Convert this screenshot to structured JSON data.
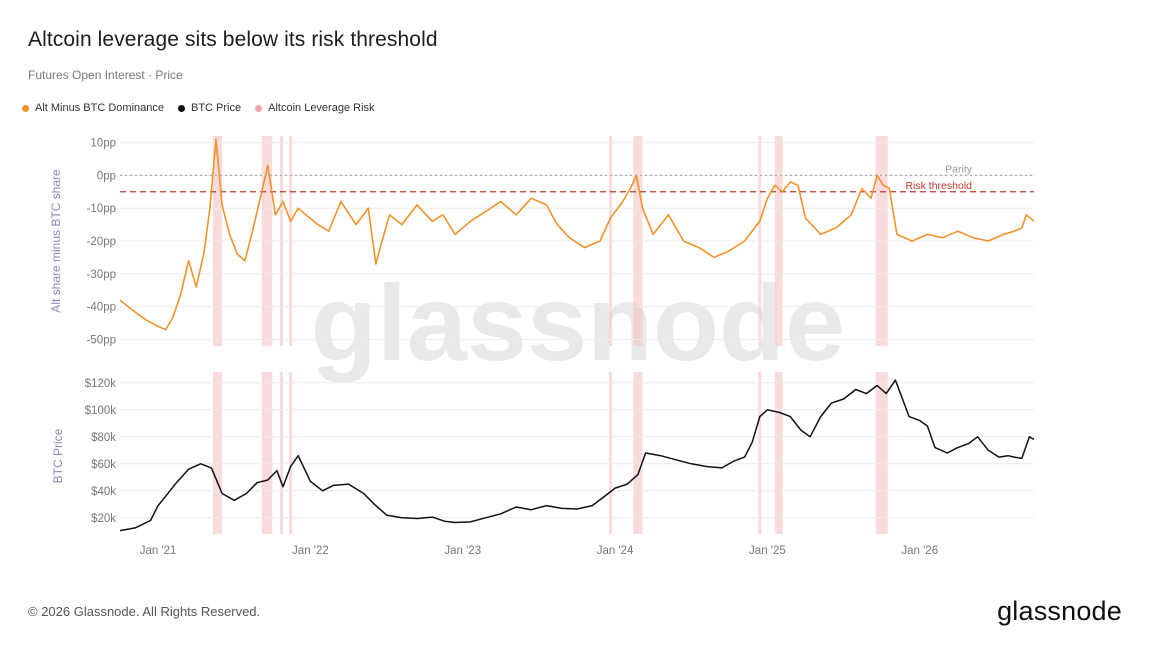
{
  "title": "Altcoin leverage sits below its risk threshold",
  "subtitle": "Futures Open Interest · Price",
  "legend": [
    {
      "label": "Alt Minus BTC Dominance",
      "color": "#f0932b"
    },
    {
      "label": "BTC Price",
      "color": "#111111"
    },
    {
      "label": "Altcoin Leverage Risk",
      "color": "#f2a9a9"
    }
  ],
  "watermark": "glassnode",
  "footer": "© 2026 Glassnode. All Rights Reserved.",
  "brand": "glassnode",
  "chart_data": [
    {
      "type": "line",
      "panel": "top",
      "ylabel": "Alt share minus BTC share",
      "ylim": [
        -52,
        12
      ],
      "yticks": [
        10,
        0,
        -10,
        -20,
        -30,
        -40,
        -50
      ],
      "ytick_labels": [
        "10pp",
        "0pp",
        "-10pp",
        "-20pp",
        "-30pp",
        "-40pp",
        "-50pp"
      ],
      "xlim": [
        2020.75,
        2026.75
      ],
      "reference_lines": [
        {
          "label": "Parity",
          "value": 0,
          "color": "#aaaaaa",
          "style": "dotted"
        },
        {
          "label": "Risk threshold",
          "value": -5,
          "color": "#c0392b",
          "style": "dashed"
        }
      ],
      "series": [
        {
          "name": "Alt Minus BTC Dominance",
          "color": "#f0932b",
          "x": [
            2020.75,
            2020.83,
            2020.92,
            2021.0,
            2021.05,
            2021.1,
            2021.15,
            2021.2,
            2021.25,
            2021.3,
            2021.34,
            2021.38,
            2021.42,
            2021.47,
            2021.52,
            2021.57,
            2021.62,
            2021.68,
            2021.72,
            2021.77,
            2021.82,
            2021.87,
            2021.92,
            2021.97,
            2022.05,
            2022.12,
            2022.2,
            2022.3,
            2022.38,
            2022.43,
            2022.47,
            2022.52,
            2022.6,
            2022.7,
            2022.8,
            2022.87,
            2022.95,
            2023.05,
            2023.15,
            2023.25,
            2023.35,
            2023.45,
            2023.55,
            2023.62,
            2023.7,
            2023.8,
            2023.9,
            2023.97,
            2024.05,
            2024.1,
            2024.14,
            2024.18,
            2024.25,
            2024.35,
            2024.45,
            2024.55,
            2024.65,
            2024.75,
            2024.85,
            2024.95,
            2025.0,
            2025.05,
            2025.1,
            2025.15,
            2025.2,
            2025.25,
            2025.35,
            2025.45,
            2025.55,
            2025.62,
            2025.68,
            2025.72,
            2025.76,
            2025.8,
            2025.85,
            2025.95,
            2026.05,
            2026.15,
            2026.25,
            2026.35,
            2026.45,
            2026.55,
            2026.62,
            2026.67,
            2026.7,
            2026.75
          ],
          "values": [
            -38,
            -41,
            -44,
            -46,
            -47,
            -43,
            -36,
            -26,
            -34,
            -24,
            -10,
            11,
            -9,
            -18,
            -24,
            -26,
            -17,
            -5,
            3,
            -12,
            -8,
            -14,
            -10,
            -12,
            -15,
            -17,
            -8,
            -15,
            -10,
            -27,
            -20,
            -12,
            -15,
            -9,
            -14,
            -12,
            -18,
            -14,
            -11,
            -8,
            -12,
            -7,
            -9,
            -15,
            -19,
            -22,
            -20,
            -13,
            -8,
            -4,
            0,
            -10,
            -18,
            -12,
            -20,
            -22,
            -25,
            -23,
            -20,
            -14,
            -7,
            -3,
            -5,
            -2,
            -3,
            -13,
            -18,
            -16,
            -12,
            -4,
            -7,
            0,
            -3,
            -4,
            -18,
            -20,
            -18,
            -19,
            -17,
            -19,
            -20,
            -18,
            -17,
            -16,
            -12,
            -14
          ]
        }
      ],
      "risk_periods": [
        [
          2021.36,
          2021.42
        ],
        [
          2021.68,
          2021.75
        ],
        [
          2021.8,
          2021.82
        ],
        [
          2021.86,
          2021.88
        ],
        [
          2023.96,
          2023.98
        ],
        [
          2024.12,
          2024.18
        ],
        [
          2024.94,
          2024.96
        ],
        [
          2025.05,
          2025.1
        ],
        [
          2025.71,
          2025.79
        ]
      ]
    },
    {
      "type": "line",
      "panel": "bottom",
      "ylabel": "BTC Price",
      "ylim": [
        8000,
        128000
      ],
      "yticks": [
        20000,
        40000,
        60000,
        80000,
        100000,
        120000
      ],
      "ytick_labels": [
        "$20k",
        "$40k",
        "$60k",
        "$80k",
        "$100k",
        "$120k"
      ],
      "xlim": [
        2020.75,
        2026.75
      ],
      "xticks": [
        2021.0,
        2022.0,
        2023.0,
        2024.0,
        2025.0,
        2026.0
      ],
      "xtick_labels": [
        "Jan '21",
        "Jan '22",
        "Jan '23",
        "Jan '24",
        "Jan '25",
        "Jan '26"
      ],
      "series": [
        {
          "name": "BTC Price",
          "color": "#111111",
          "x": [
            2020.75,
            2020.85,
            2020.95,
            2021.0,
            2021.05,
            2021.12,
            2021.2,
            2021.28,
            2021.35,
            2021.42,
            2021.5,
            2021.58,
            2021.65,
            2021.72,
            2021.78,
            2021.82,
            2021.87,
            2021.92,
            2022.0,
            2022.08,
            2022.15,
            2022.25,
            2022.35,
            2022.42,
            2022.5,
            2022.6,
            2022.7,
            2022.8,
            2022.88,
            2022.95,
            2023.05,
            2023.15,
            2023.25,
            2023.35,
            2023.45,
            2023.55,
            2023.65,
            2023.75,
            2023.85,
            2023.92,
            2024.0,
            2024.08,
            2024.15,
            2024.2,
            2024.3,
            2024.4,
            2024.5,
            2024.6,
            2024.7,
            2024.78,
            2024.85,
            2024.9,
            2024.95,
            2025.0,
            2025.08,
            2025.15,
            2025.22,
            2025.28,
            2025.35,
            2025.42,
            2025.5,
            2025.58,
            2025.65,
            2025.72,
            2025.78,
            2025.84,
            2025.88,
            2025.93,
            2026.0,
            2026.05,
            2026.1,
            2026.18,
            2026.25,
            2026.32,
            2026.38,
            2026.45,
            2026.52,
            2026.58,
            2026.62,
            2026.67,
            2026.72,
            2026.75
          ],
          "values": [
            10500,
            12500,
            18000,
            29000,
            36000,
            46000,
            56000,
            60000,
            57000,
            38000,
            33000,
            38000,
            46000,
            48000,
            55000,
            43000,
            58000,
            66000,
            47000,
            40000,
            44000,
            45000,
            38000,
            30000,
            22000,
            20000,
            19500,
            20500,
            17500,
            16500,
            17000,
            20000,
            23000,
            28000,
            26000,
            29000,
            27000,
            26500,
            29000,
            35000,
            42000,
            45000,
            52000,
            68000,
            66000,
            63000,
            60000,
            58000,
            57000,
            62000,
            65000,
            76000,
            95000,
            100000,
            98000,
            95000,
            85000,
            80000,
            95000,
            105000,
            108000,
            115000,
            112000,
            118000,
            112000,
            122000,
            110000,
            95000,
            92000,
            88000,
            72000,
            68000,
            72000,
            75000,
            80000,
            70000,
            65000,
            66000,
            65000,
            64000,
            80000,
            78000
          ]
        }
      ],
      "risk_periods": [
        [
          2021.36,
          2021.42
        ],
        [
          2021.68,
          2021.75
        ],
        [
          2021.8,
          2021.82
        ],
        [
          2021.86,
          2021.88
        ],
        [
          2023.96,
          2023.98
        ],
        [
          2024.12,
          2024.18
        ],
        [
          2024.94,
          2024.96
        ],
        [
          2025.05,
          2025.1
        ],
        [
          2025.71,
          2025.79
        ]
      ]
    }
  ]
}
